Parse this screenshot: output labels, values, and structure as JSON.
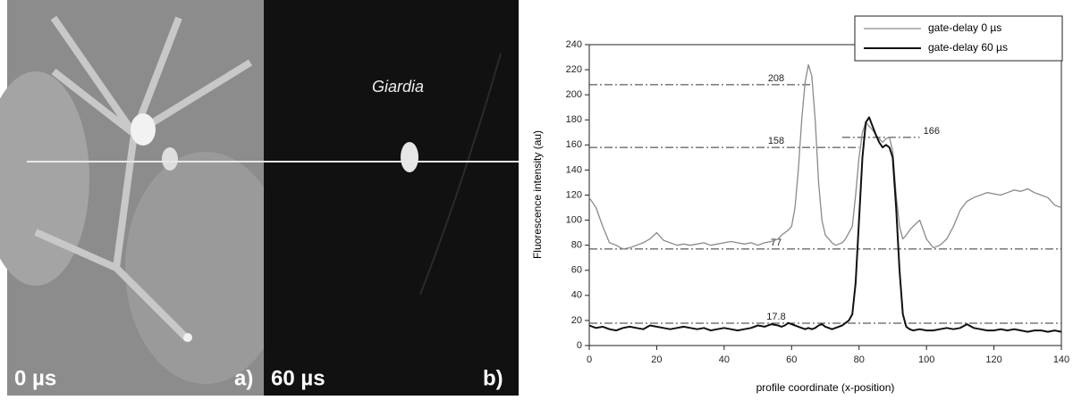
{
  "panels": [
    {
      "label": "0 µs",
      "letter": "a)"
    },
    {
      "label": "60 µs",
      "letter": "b)",
      "annotation": "Giardia"
    }
  ],
  "chart_data": {
    "type": "line",
    "ylabel": "Fluorescence intensity (au)",
    "xlabel": "profile coordinate (x-position)",
    "xlim": [
      0,
      140
    ],
    "xticks": [
      0,
      20,
      40,
      60,
      80,
      100,
      120,
      140
    ],
    "ylim": [
      0,
      240
    ],
    "yticks": [
      0,
      20,
      40,
      60,
      80,
      100,
      120,
      140,
      160,
      180,
      200,
      220,
      240
    ],
    "legend": "upper right",
    "x": [
      0,
      2,
      4,
      6,
      8,
      10,
      12,
      14,
      16,
      18,
      20,
      22,
      24,
      26,
      28,
      30,
      32,
      34,
      36,
      38,
      40,
      42,
      44,
      46,
      48,
      50,
      52,
      54,
      56,
      57,
      58,
      59,
      60,
      61,
      62,
      63,
      64,
      65,
      66,
      67,
      68,
      69,
      70,
      71,
      72,
      73,
      74,
      75,
      76,
      77,
      78,
      79,
      80,
      81,
      82,
      83,
      84,
      85,
      86,
      87,
      88,
      89,
      90,
      91,
      92,
      93,
      94,
      95,
      96,
      98,
      100,
      102,
      104,
      106,
      108,
      110,
      112,
      114,
      116,
      118,
      120,
      122,
      124,
      126,
      128,
      130,
      132,
      134,
      136,
      138,
      140
    ],
    "series": [
      {
        "name": "gate-delay 0 µs",
        "color": "#8a8a8a",
        "width": 1.3,
        "values": [
          118,
          110,
          95,
          82,
          80,
          77,
          78,
          80,
          82,
          85,
          90,
          84,
          82,
          80,
          81,
          80,
          81,
          82,
          80,
          81,
          82,
          83,
          82,
          81,
          82,
          80,
          82,
          83,
          85,
          88,
          90,
          92,
          95,
          110,
          140,
          180,
          210,
          224,
          215,
          180,
          130,
          100,
          88,
          85,
          82,
          80,
          81,
          82,
          85,
          90,
          95,
          120,
          150,
          170,
          178,
          175,
          172,
          168,
          165,
          162,
          165,
          166,
          155,
          120,
          95,
          85,
          88,
          92,
          95,
          100,
          85,
          78,
          80,
          85,
          95,
          108,
          115,
          118,
          120,
          122,
          121,
          120,
          122,
          124,
          123,
          125,
          122,
          120,
          118,
          112,
          110
        ]
      },
      {
        "name": "gate-delay 60 µs",
        "color": "#111111",
        "width": 2,
        "values": [
          16,
          14,
          15,
          13,
          12,
          14,
          15,
          14,
          13,
          16,
          15,
          14,
          13,
          14,
          15,
          14,
          13,
          14,
          12,
          13,
          14,
          13,
          12,
          13,
          14,
          16,
          15,
          17,
          16,
          15,
          16,
          18,
          17,
          16,
          15,
          14,
          13,
          14,
          13,
          14,
          16,
          17,
          15,
          14,
          13,
          14,
          15,
          16,
          18,
          20,
          25,
          50,
          100,
          150,
          178,
          182,
          175,
          168,
          162,
          158,
          160,
          158,
          150,
          110,
          60,
          25,
          15,
          13,
          12,
          13,
          12,
          12,
          13,
          14,
          13,
          14,
          17,
          14,
          13,
          12,
          12,
          13,
          12,
          13,
          12,
          11,
          12,
          12,
          11,
          12,
          11
        ]
      }
    ],
    "reference_lines": [
      {
        "y": 208,
        "x": [
          0,
          66
        ]
      },
      {
        "y": 158,
        "x": [
          0,
          80
        ]
      },
      {
        "y": 166,
        "x": [
          75,
          98
        ]
      },
      {
        "y": 77,
        "x": [
          0,
          140
        ]
      },
      {
        "y": 17.8,
        "x": [
          0,
          140
        ]
      }
    ]
  }
}
